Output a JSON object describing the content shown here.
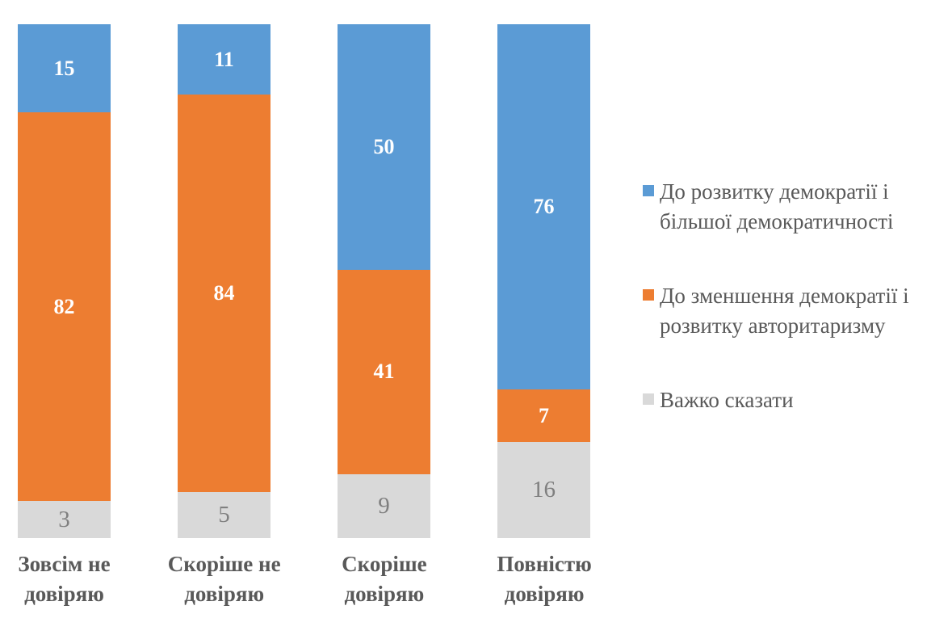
{
  "chart_data": {
    "type": "bar",
    "subtype": "stacked-100-percent-vertical",
    "title": "",
    "xlabel": "",
    "ylabel": "",
    "gridlines": false,
    "axes_visible": false,
    "legend_position": "right",
    "categories": [
      "Зовсім не довіряю",
      "Скоріше не довіряю",
      "Скоріше довіряю",
      "Повністю довіряю"
    ],
    "series": [
      {
        "name": "До розвитку демократії і більшої демократичності",
        "color": "#5B9BD5",
        "label_color": "#FFFFFF",
        "label_bold": true,
        "values": [
          15,
          11,
          50,
          76
        ]
      },
      {
        "name": "До зменшення демократії і розвитку авторитаризму",
        "color": "#ED7D31",
        "label_color": "#FFFFFF",
        "label_bold": true,
        "values": [
          82,
          84,
          41,
          7
        ]
      },
      {
        "name": "Важко сказати",
        "color": "#D9D9D9",
        "label_color": "#7F7F7F",
        "label_bold": false,
        "values": [
          3,
          5,
          9,
          16
        ]
      }
    ]
  },
  "legend": {
    "items": [
      {
        "color": "#5B9BD5",
        "lines": [
          "До розвитку демократії і",
          "більшої демократичності"
        ]
      },
      {
        "color": "#ED7D31",
        "lines": [
          "До зменшення демократії і",
          "розвитку авторитаризму"
        ]
      },
      {
        "color": "#D9D9D9",
        "lines": [
          "Важко сказати"
        ]
      }
    ]
  },
  "x_axis": {
    "labels": [
      {
        "lines": [
          "Зовсім не",
          "довіряю"
        ]
      },
      {
        "lines": [
          "Скоріше не",
          "довіряю"
        ]
      },
      {
        "lines": [
          "Скоріше",
          "довіряю"
        ]
      },
      {
        "lines": [
          "Повністю",
          "довіряю"
        ]
      }
    ]
  },
  "colors": {
    "background": "#FFFFFF",
    "axis_label_text": "#595959",
    "legend_text": "#595959",
    "gray_value_text": "#7F7F7F"
  }
}
